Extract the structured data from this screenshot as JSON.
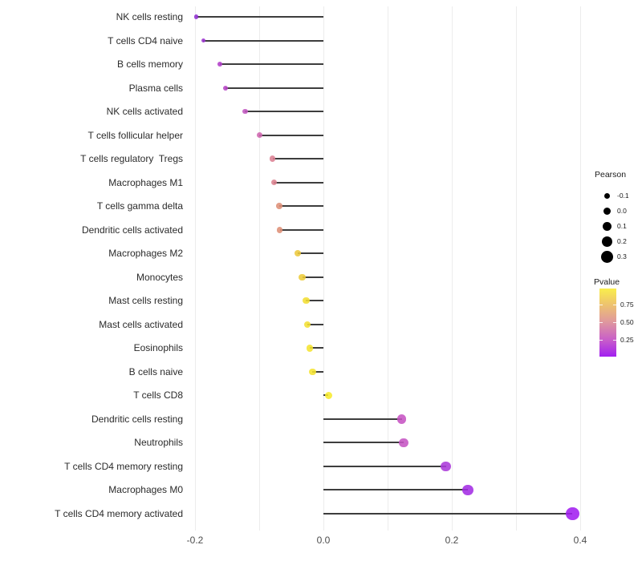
{
  "chart_data": {
    "type": "lollipop",
    "title": "",
    "xlabel": "",
    "ylabel": "",
    "x_axis": {
      "range": [
        -0.25,
        0.42
      ],
      "ticks": [
        {
          "label": "-0.2",
          "value": -0.2
        },
        {
          "label": "0.0",
          "value": 0.0
        },
        {
          "label": "0.2",
          "value": 0.2
        },
        {
          "label": "0.4",
          "value": 0.4
        }
      ],
      "gridlines": [
        -0.2,
        -0.1,
        0.0,
        0.1,
        0.2,
        0.3,
        0.4
      ],
      "grid": "vertical-only"
    },
    "points": [
      {
        "label": "NK cells resting",
        "pearson": -0.198,
        "pvalue": 0.08,
        "color": "#9130d1"
      },
      {
        "label": "T cells CD4 naive",
        "pearson": -0.187,
        "pvalue": 0.1,
        "color": "#9c36cf"
      },
      {
        "label": "B cells memory",
        "pearson": -0.161,
        "pvalue": 0.18,
        "color": "#b23fc9"
      },
      {
        "label": "Plasma cells",
        "pearson": -0.152,
        "pvalue": 0.2,
        "color": "#b644c5"
      },
      {
        "label": "NK cells activated",
        "pearson": -0.122,
        "pvalue": 0.28,
        "color": "#c258c0"
      },
      {
        "label": "T cells follicular helper",
        "pearson": -0.1,
        "pvalue": 0.36,
        "color": "#cf67af"
      },
      {
        "label": "T cells regulatory  Tregs",
        "pearson": -0.079,
        "pvalue": 0.48,
        "color": "#dc8193"
      },
      {
        "label": "Macrophages M1",
        "pearson": -0.077,
        "pvalue": 0.48,
        "color": "#dc8290"
      },
      {
        "label": "T cells gamma delta",
        "pearson": -0.069,
        "pvalue": 0.53,
        "color": "#de9078"
      },
      {
        "label": "Dendritic cells activated",
        "pearson": -0.068,
        "pvalue": 0.53,
        "color": "#de9076"
      },
      {
        "label": "Macrophages M2",
        "pearson": -0.04,
        "pvalue": 0.72,
        "color": "#ecc83e"
      },
      {
        "label": "Monocytes",
        "pearson": -0.033,
        "pvalue": 0.74,
        "color": "#edcc3a"
      },
      {
        "label": "Mast cells resting",
        "pearson": -0.027,
        "pvalue": 0.84,
        "color": "#f3de33"
      },
      {
        "label": "Mast cells activated",
        "pearson": -0.025,
        "pvalue": 0.85,
        "color": "#f3df33"
      },
      {
        "label": "Eosinophils",
        "pearson": -0.021,
        "pvalue": 0.87,
        "color": "#f5e431"
      },
      {
        "label": "B cells naive",
        "pearson": -0.017,
        "pvalue": 0.88,
        "color": "#f5e431"
      },
      {
        "label": "T cells CD8",
        "pearson": 0.008,
        "pvalue": 0.93,
        "color": "#f7ea2e"
      },
      {
        "label": "Dendritic cells resting",
        "pearson": 0.122,
        "pvalue": 0.27,
        "color": "#c653c3"
      },
      {
        "label": "Neutrophils",
        "pearson": 0.125,
        "pvalue": 0.27,
        "color": "#c554c3"
      },
      {
        "label": "T cells CD4 memory resting",
        "pearson": 0.191,
        "pvalue": 0.13,
        "color": "#ab3ada"
      },
      {
        "label": "Macrophages M0",
        "pearson": 0.225,
        "pvalue": 0.08,
        "color": "#a32ce4"
      },
      {
        "label": "T cells CD4 memory activated",
        "pearson": 0.388,
        "pvalue": 0.03,
        "color": "#a21ff0"
      }
    ],
    "legends": {
      "size": {
        "title": "Pearson",
        "dot_color": "#000000",
        "entries": [
          {
            "label": "-0.1",
            "value": -0.1
          },
          {
            "label": "0.0",
            "value": 0.0
          },
          {
            "label": "0.1",
            "value": 0.1
          },
          {
            "label": "0.2",
            "value": 0.2
          },
          {
            "label": "0.3",
            "value": 0.3
          }
        ]
      },
      "color": {
        "title": "Pvalue",
        "domain": [
          0.02,
          0.97
        ],
        "ticks": [
          {
            "label": "0.75",
            "value": 0.75
          },
          {
            "label": "0.50",
            "value": 0.5
          },
          {
            "label": "0.25",
            "value": 0.25
          }
        ],
        "gradient_stops": [
          {
            "color": "#a21ff0",
            "pos": 0
          },
          {
            "color": "#c95fc8",
            "pos": 25
          },
          {
            "color": "#e09a9c",
            "pos": 52
          },
          {
            "color": "#efc76a",
            "pos": 79
          },
          {
            "color": "#f9ee4c",
            "pos": 100
          }
        ]
      }
    }
  }
}
